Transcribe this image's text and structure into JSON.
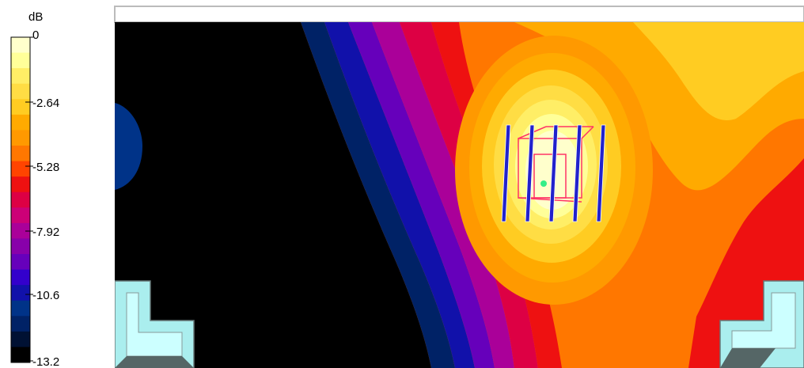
{
  "chart_data": {
    "type": "heatmap",
    "colorbar": {
      "unit": "dB",
      "ticks": [
        "0",
        "-2.64",
        "-5.28",
        "-7.92",
        "-10.6",
        "-13.2"
      ],
      "range": [
        -13.2,
        0
      ],
      "levels": [
        0,
        -0.66,
        -1.32,
        -1.98,
        -2.64,
        -3.3,
        -3.96,
        -4.62,
        -5.28,
        -5.94,
        -6.6,
        -7.26,
        -7.92,
        -8.58,
        -9.24,
        -9.9,
        -10.6,
        -11.2,
        -11.9,
        -12.5,
        -13.2
      ],
      "colors": [
        "#ffffcc",
        "#ffff99",
        "#ffee66",
        "#ffdd44",
        "#ffcc22",
        "#ffaa00",
        "#ff9900",
        "#ff7700",
        "#ff4400",
        "#ee1111",
        "#dd0044",
        "#cc0077",
        "#aa0099",
        "#8800aa",
        "#6600bb",
        "#3300cc",
        "#1111aa",
        "#003388",
        "#002266",
        "#001133",
        "#000000"
      ]
    },
    "source_marker": "antenna-array",
    "background_color": "#000000",
    "frame_color": "#aaeeee"
  }
}
